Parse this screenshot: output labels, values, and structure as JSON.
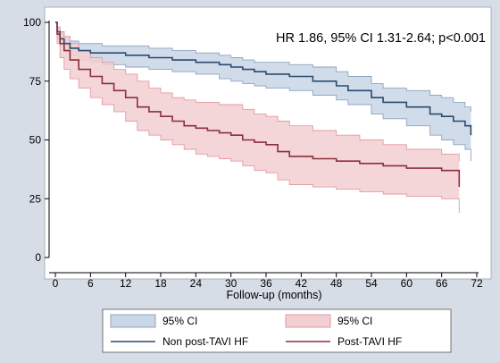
{
  "chart_data": {
    "type": "line",
    "title": "",
    "xlabel": "Follow-up (months)",
    "ylabel": "",
    "xlim": [
      0,
      72
    ],
    "ylim": [
      0,
      100
    ],
    "xticks": [
      0,
      6,
      12,
      18,
      24,
      30,
      36,
      42,
      48,
      54,
      60,
      66,
      72
    ],
    "yticks": [
      0,
      25,
      50,
      75,
      100
    ],
    "grid": false,
    "annotation": "HR 1.86, 95% CI 1.31-2.64; p<0.001",
    "legend_placement": "bottom",
    "colors": {
      "non_post_line": "#2b4a6f",
      "non_post_band": "#c9d6e6",
      "non_post_band_edge": "#8fa4c0",
      "post_line": "#8b2f3a",
      "post_band": "#f2cfd2",
      "post_band_edge": "#e39aa2"
    },
    "series": [
      {
        "name": "Non post-TAVI HF",
        "band_label": "95% CI",
        "x": [
          0,
          0.3,
          0.8,
          1.5,
          2.5,
          4,
          6,
          8,
          12,
          16,
          20,
          24,
          28,
          30,
          32,
          34,
          36,
          40,
          44,
          48,
          50,
          54,
          56,
          60,
          64,
          66,
          68,
          70,
          71
        ],
        "y": [
          100,
          96,
          93,
          91,
          89,
          88,
          87,
          87,
          86,
          85,
          84,
          83,
          82,
          81,
          80,
          79,
          78,
          77,
          75,
          73,
          71,
          68,
          66,
          64,
          61,
          60,
          58,
          56,
          52
        ],
        "lower": [
          100,
          93,
          90,
          88,
          86,
          84,
          83,
          82,
          81,
          80,
          79,
          78,
          76,
          75,
          74,
          73,
          72,
          71,
          69,
          67,
          65,
          61,
          59,
          56,
          52,
          50,
          48,
          46,
          41
        ],
        "upper": [
          100,
          98,
          96,
          94,
          92,
          91,
          91,
          90,
          90,
          89,
          88,
          87,
          86,
          85,
          84,
          83,
          83,
          82,
          81,
          79,
          77,
          74,
          72,
          71,
          69,
          68,
          66,
          64,
          62
        ]
      },
      {
        "name": "Post-TAVI HF",
        "band_label": "95% CI",
        "x": [
          0,
          0.3,
          0.8,
          1.5,
          2.5,
          4,
          6,
          8,
          10,
          12,
          14,
          16,
          18,
          20,
          22,
          24,
          26,
          28,
          30,
          32,
          34,
          36,
          38,
          40,
          44,
          48,
          52,
          56,
          60,
          66,
          69
        ],
        "y": [
          100,
          95,
          91,
          88,
          84,
          80,
          77,
          74,
          71,
          68,
          64,
          62,
          60,
          58,
          56,
          55,
          54,
          53,
          52,
          50,
          49,
          48,
          45,
          43,
          42,
          41,
          40,
          39,
          38,
          37,
          30
        ],
        "lower": [
          100,
          91,
          85,
          80,
          76,
          72,
          68,
          65,
          62,
          58,
          54,
          52,
          50,
          48,
          46,
          44,
          43,
          42,
          41,
          39,
          37,
          36,
          33,
          31,
          30,
          29,
          28,
          27,
          26,
          25,
          19
        ],
        "upper": [
          100,
          98,
          96,
          94,
          91,
          88,
          85,
          83,
          80,
          78,
          75,
          72,
          70,
          68,
          67,
          66,
          66,
          65,
          65,
          63,
          61,
          60,
          58,
          56,
          54,
          52,
          50,
          48,
          46,
          44,
          41
        ]
      }
    ]
  }
}
